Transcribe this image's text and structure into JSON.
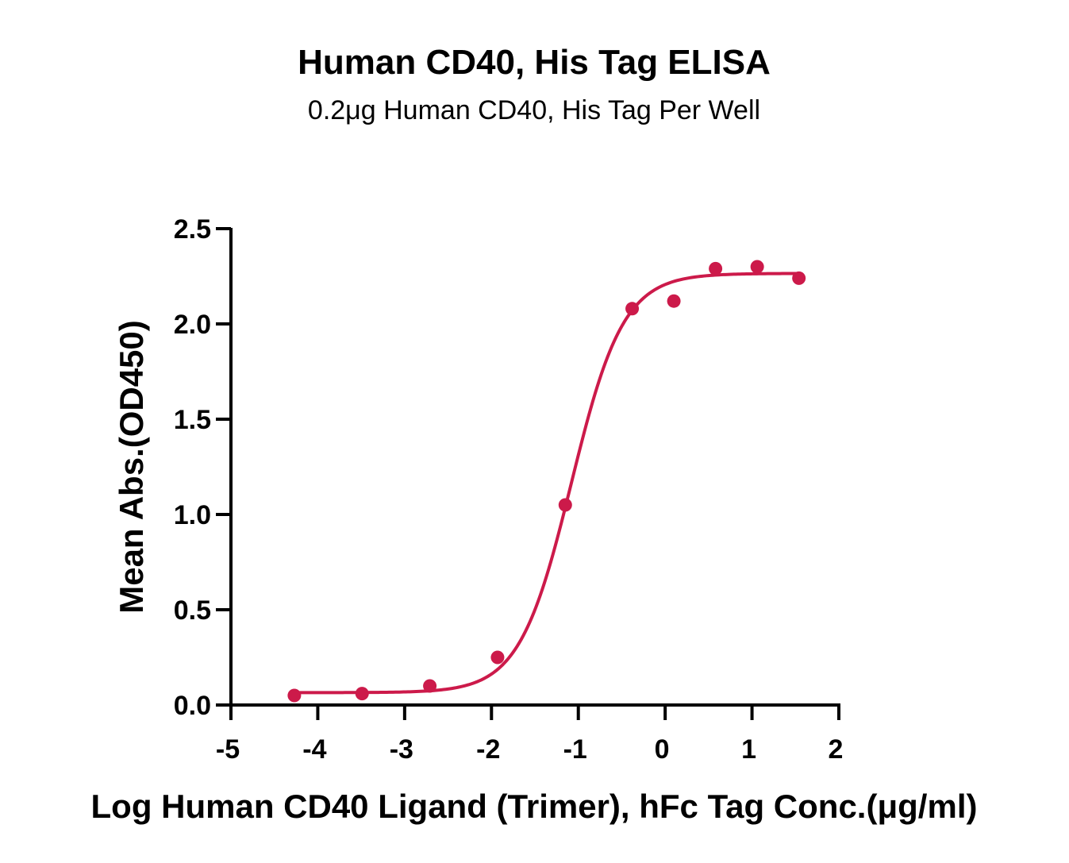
{
  "chart_data": {
    "type": "scatter",
    "title": "Human CD40, His Tag ELISA",
    "subtitle": "0.2μg Human CD40, His Tag Per Well",
    "xlabel": "Log Human CD40 Ligand (Trimer), hFc Tag Conc.(μg/ml)",
    "ylabel": "Mean Abs.(OD450)",
    "xlim": [
      -5,
      2
    ],
    "ylim": [
      0,
      2.5
    ],
    "x_ticks": [
      -5,
      -4,
      -3,
      -2,
      -1,
      0,
      1,
      2
    ],
    "x_tick_labels": [
      "-5",
      "-4",
      "-3",
      "-2",
      "-1",
      "0",
      "1",
      "2"
    ],
    "y_ticks": [
      0,
      0.5,
      1.0,
      1.5,
      2.0,
      2.5
    ],
    "y_tick_labels": [
      "0.0",
      "0.5",
      "1.0",
      "1.5",
      "2.0",
      "2.5"
    ],
    "grid": false,
    "legend": "none",
    "color": "#cc1a4a",
    "series": [
      {
        "points": [
          {
            "x": -4.27,
            "y": 0.05
          },
          {
            "x": -3.49,
            "y": 0.06
          },
          {
            "x": -2.71,
            "y": 0.1
          },
          {
            "x": -1.93,
            "y": 0.25
          },
          {
            "x": -1.15,
            "y": 1.05
          },
          {
            "x": -0.38,
            "y": 2.08
          },
          {
            "x": 0.1,
            "y": 2.12
          },
          {
            "x": 0.58,
            "y": 2.29
          },
          {
            "x": 1.06,
            "y": 2.3
          },
          {
            "x": 1.54,
            "y": 2.24
          }
        ],
        "fit": {
          "model": "four-parameter logistic",
          "bottom": 0.065,
          "top": 2.265,
          "log_ec50": -1.08,
          "hill_slope": 1.45,
          "x_range": [
            -4.27,
            1.54
          ]
        }
      }
    ]
  }
}
